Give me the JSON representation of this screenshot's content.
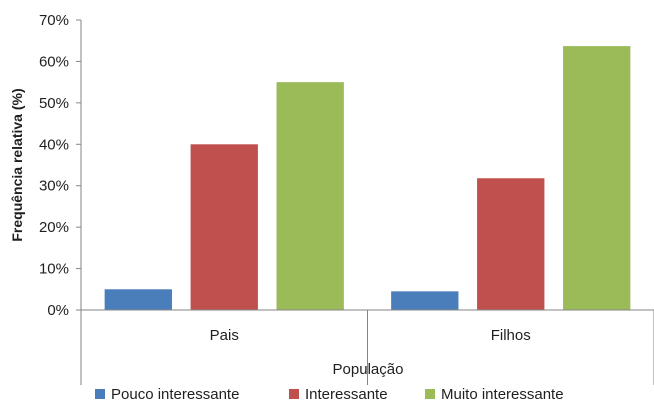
{
  "chart_data": {
    "type": "bar",
    "title": "",
    "xlabel": "População",
    "ylabel": "Frequência relativa (%)",
    "ylim": [
      0,
      70
    ],
    "y_tick_step": 10,
    "y_tick_format": "percent",
    "grid": false,
    "legend_position": "bottom",
    "categories": [
      "Pais",
      "Filhos"
    ],
    "series": [
      {
        "name": "Pouco interessante",
        "color": "#4a7ebb",
        "values": [
          5,
          4.5
        ]
      },
      {
        "name": "Interessante",
        "color": "#c0504d",
        "values": [
          40,
          31.8
        ]
      },
      {
        "name": "Muito interessante",
        "color": "#9bbb59",
        "values": [
          55,
          63.7
        ]
      }
    ]
  }
}
